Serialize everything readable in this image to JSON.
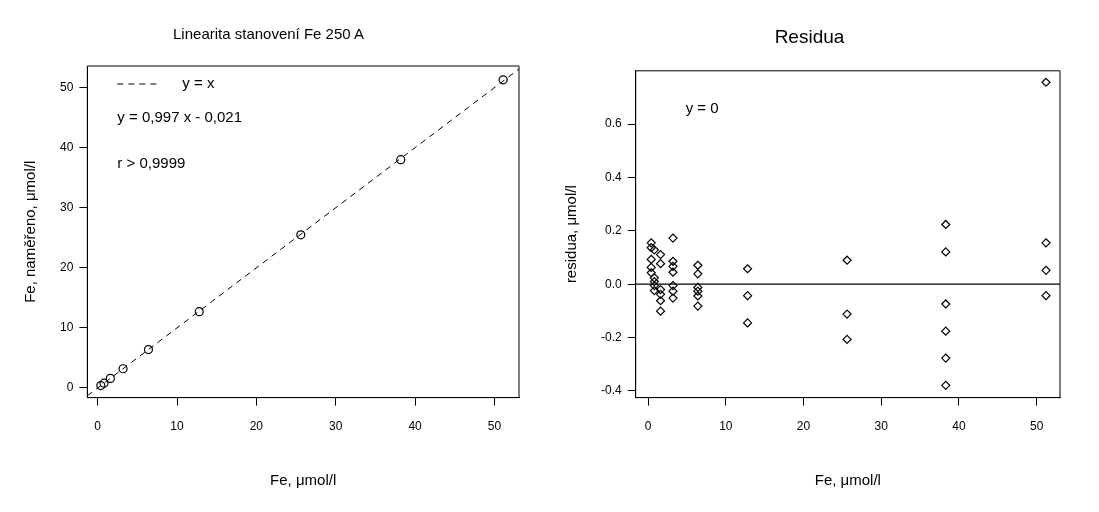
{
  "chart_data": [
    {
      "type": "scatter",
      "title": "Linearita stanovení Fe 250 A",
      "xlabel": "Fe, μmol/l",
      "ylabel": "Fe, naměřeno, μmol/l",
      "xlim": [
        -1.3,
        53.1
      ],
      "ylim": [
        -1.6,
        53.6
      ],
      "xticks": [
        0,
        10,
        20,
        30,
        40,
        50
      ],
      "yticks": [
        0,
        10,
        20,
        30,
        40,
        50
      ],
      "grid": false,
      "legend": "top left",
      "marker": "circle",
      "annotations": [
        "y = 0,997 x - 0,021",
        "r > 0,9999"
      ],
      "series": [
        {
          "type": "scatter",
          "color": "#000000",
          "x": [
            0.4,
            0.8,
            1.6,
            3.2,
            6.4,
            12.8,
            25.6,
            38.2,
            51.1
          ],
          "values": [
            0.4,
            0.8,
            1.6,
            3.2,
            6.4,
            12.7,
            25.5,
            38.0,
            51.3
          ]
        },
        {
          "type": "line",
          "name": "y = x",
          "color": "#000000",
          "line_style": "dashed",
          "marker": "none",
          "x": [
            -1.3,
            53.1
          ],
          "values": [
            -1.3,
            53.1
          ]
        }
      ]
    },
    {
      "type": "scatter",
      "title": "Residua",
      "xlabel": "Fe, μmol/l",
      "ylabel": "residua, μmol/l",
      "xlim": [
        -1.6,
        53
      ],
      "ylim": [
        -0.425,
        0.8
      ],
      "xticks": [
        0,
        10,
        20,
        30,
        40,
        50
      ],
      "yticks": [
        -0.4,
        -0.2,
        {
          "value": 0,
          "label": "0.0"
        },
        0.2,
        0.4,
        0.6
      ],
      "grid": false,
      "marker": "diamond",
      "ref_lines": [
        {
          "axis": "y",
          "value": 0,
          "label": "y = 0",
          "color": "#000000"
        }
      ],
      "series": [
        {
          "type": "scatter",
          "color": "#000000",
          "x": [
            51.2,
            51.2,
            51.2,
            51.2,
            38.3,
            38.3,
            38.3,
            38.3,
            38.3,
            38.3,
            25.6,
            25.6,
            25.6,
            12.8,
            12.8,
            12.8,
            6.4,
            6.4,
            6.4,
            6.4,
            6.4,
            6.4,
            3.2,
            3.2,
            3.2,
            3.2,
            3.2,
            3.2,
            3.2,
            1.6,
            1.6,
            1.6,
            1.6,
            1.6,
            1.6,
            0.4,
            0.4,
            0.4,
            0.4,
            0.4,
            0.8,
            0.8,
            0.8,
            0.8,
            0.8
          ],
          "values": [
            0.757,
            0.155,
            0.052,
            -0.043,
            0.224,
            0.121,
            -0.074,
            -0.176,
            -0.277,
            -0.379,
            0.09,
            -0.112,
            -0.207,
            0.058,
            -0.043,
            -0.145,
            0.071,
            0.039,
            -0.012,
            -0.026,
            -0.044,
            -0.082,
            0.173,
            0.086,
            0.067,
            0.045,
            -0.005,
            -0.026,
            -0.052,
            0.111,
            0.077,
            -0.02,
            -0.038,
            -0.062,
            -0.101,
            0.155,
            0.137,
            0.093,
            0.063,
            0.043,
            0.129,
            0.024,
            0.01,
            -0.005,
            -0.024
          ]
        }
      ]
    }
  ]
}
